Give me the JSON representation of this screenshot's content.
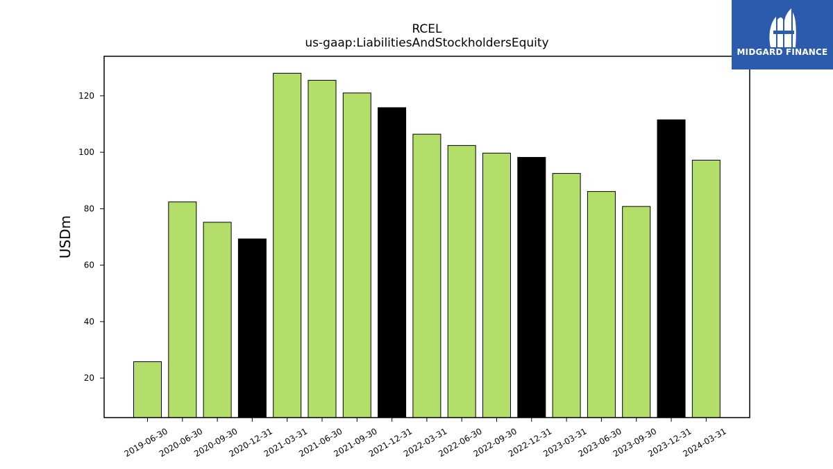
{
  "chart_data": {
    "type": "bar",
    "title": "RCEL",
    "subtitle": "us-gaap:LiabilitiesAndStockholdersEquity",
    "ylabel": "USDm",
    "ylim": [
      6,
      134
    ],
    "yticks": [
      20,
      40,
      60,
      80,
      100,
      120
    ],
    "categories": [
      "2019-06-30",
      "2020-06-30",
      "2020-09-30",
      "2020-12-31",
      "2021-03-31",
      "2021-06-30",
      "2021-09-30",
      "2021-12-31",
      "2022-03-31",
      "2022-06-30",
      "2022-09-30",
      "2022-12-31",
      "2023-03-31",
      "2023-06-30",
      "2023-09-30",
      "2023-12-31",
      "2024-03-31"
    ],
    "values": [
      25.8,
      82.4,
      75.2,
      69.3,
      128.0,
      125.5,
      121.0,
      115.8,
      106.4,
      102.4,
      99.7,
      98.2,
      92.5,
      86.1,
      80.8,
      111.5,
      97.2
    ],
    "highlight": [
      false,
      false,
      false,
      true,
      false,
      false,
      false,
      true,
      false,
      false,
      false,
      true,
      false,
      false,
      false,
      true,
      false
    ],
    "colors": {
      "regular": "#b3de69",
      "highlight": "#000000",
      "edge": "#000000"
    },
    "grid": false
  },
  "logo": {
    "text": "MIDGARD FINANCE",
    "background": "#2c5aad"
  }
}
